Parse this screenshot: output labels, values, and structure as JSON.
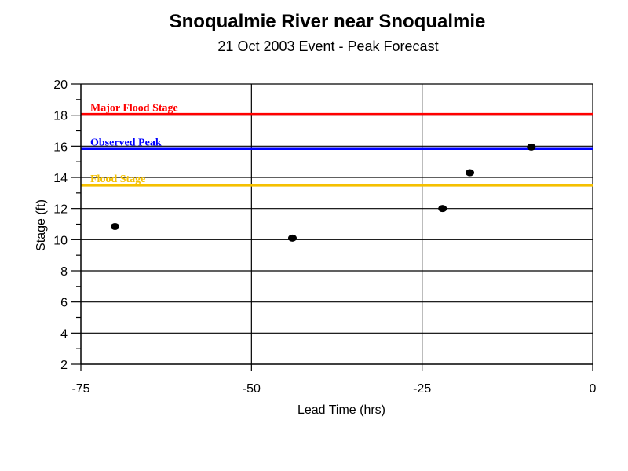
{
  "chart_data": {
    "type": "scatter",
    "title": "Snoqualmie River near Snoqualmie",
    "subtitle": "21 Oct 2003 Event - Peak Forecast",
    "xlabel": "Lead Time (hrs)",
    "ylabel": "Stage (ft)",
    "xlim": [
      -75,
      0
    ],
    "ylim": [
      2,
      20
    ],
    "x_ticks": [
      -75,
      -50,
      -25,
      0
    ],
    "y_ticks": [
      2,
      4,
      6,
      8,
      10,
      12,
      14,
      16,
      18,
      20
    ],
    "grid": true,
    "points": [
      {
        "x": -70,
        "y": 10.85
      },
      {
        "x": -44,
        "y": 10.1
      },
      {
        "x": -22,
        "y": 12.0
      },
      {
        "x": -18,
        "y": 14.3
      },
      {
        "x": -9,
        "y": 15.95
      }
    ],
    "point_color": "#000000",
    "reference_lines": [
      {
        "label": "Major Flood Stage",
        "y": 18.05,
        "color": "#ff0000"
      },
      {
        "label": "Observed Peak",
        "y": 15.85,
        "color": "#0000ff"
      },
      {
        "label": "Flood Stage",
        "y": 13.5,
        "color": "#f5c000"
      }
    ]
  }
}
